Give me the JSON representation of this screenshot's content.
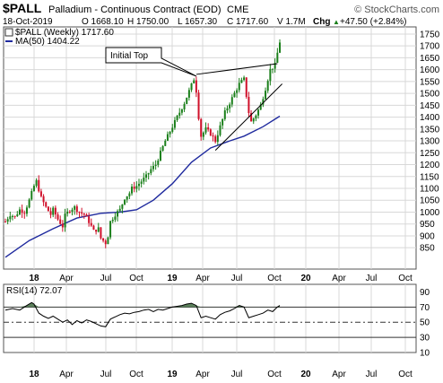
{
  "header": {
    "symbol": "$PALL",
    "description": "Palladium - Continuous Contract (EOD)",
    "exchange": "CME",
    "copyright": "© StockCharts.com",
    "date": "18-Oct-2019",
    "open": "O 1668.10",
    "high": "H 1750.00",
    "low": "L 1657.30",
    "close": "C 1717.60",
    "volume": "V 1.7M",
    "change_label": "Chg",
    "change_value": "+47.50 (+2.84%)",
    "change_arrow": "▲"
  },
  "legend": {
    "price_label": "$PALL (Weekly) 1717.60",
    "ma_label": "MA(50) 1404.22",
    "rsi_label": "RSI(14) 72.07"
  },
  "annotation": {
    "text": "Initial Top"
  },
  "colors": {
    "up": "#1a7f1a",
    "down": "#d0102a",
    "ma": "#1f2a9e",
    "rsi": "#000000",
    "rsi_fill": "#3f6b3f",
    "grid": "#d8d8d8",
    "text": "#000000"
  },
  "chart_data": [
    {
      "type": "candlestick",
      "title": "$PALL (Weekly)",
      "ylim": [
        760,
        1780
      ],
      "y_ticks": [
        850,
        900,
        950,
        1000,
        1050,
        1100,
        1150,
        1200,
        1250,
        1300,
        1350,
        1400,
        1450,
        1500,
        1550,
        1600,
        1650,
        1700,
        1750
      ],
      "x_ticks": [
        "18",
        "Apr",
        "Jul",
        "Oct",
        "19",
        "Apr",
        "Jul",
        "Oct",
        "20",
        "Apr",
        "Jul",
        "Oct"
      ],
      "price_path": [
        [
          0,
          960
        ],
        [
          2,
          990
        ],
        [
          4,
          980
        ],
        [
          6,
          1010
        ],
        [
          8,
          1000
        ],
        [
          10,
          1050
        ],
        [
          12,
          1110
        ],
        [
          13,
          1130
        ],
        [
          15,
          1060
        ],
        [
          17,
          1020
        ],
        [
          19,
          990
        ],
        [
          20,
          1010
        ],
        [
          22,
          970
        ],
        [
          24,
          940
        ],
        [
          25,
          985
        ],
        [
          27,
          1010
        ],
        [
          29,
          1020
        ],
        [
          31,
          1000
        ],
        [
          33,
          990
        ],
        [
          35,
          960
        ],
        [
          37,
          920
        ],
        [
          39,
          930
        ],
        [
          40,
          890
        ],
        [
          42,
          870
        ],
        [
          43,
          900
        ],
        [
          44,
          960
        ],
        [
          46,
          990
        ],
        [
          48,
          1010
        ],
        [
          50,
          1060
        ],
        [
          52,
          1080
        ],
        [
          53,
          1100
        ],
        [
          55,
          1110
        ],
        [
          57,
          1130
        ],
        [
          59,
          1150
        ],
        [
          61,
          1180
        ],
        [
          63,
          1200
        ],
        [
          65,
          1250
        ],
        [
          67,
          1300
        ],
        [
          69,
          1340
        ],
        [
          71,
          1380
        ],
        [
          73,
          1420
        ],
        [
          75,
          1460
        ],
        [
          77,
          1510
        ],
        [
          79,
          1560
        ],
        [
          80,
          1510
        ],
        [
          81,
          1400
        ],
        [
          82,
          1320
        ],
        [
          84,
          1350
        ],
        [
          86,
          1330
        ],
        [
          88,
          1300
        ],
        [
          90,
          1360
        ],
        [
          92,
          1420
        ],
        [
          94,
          1460
        ],
        [
          96,
          1500
        ],
        [
          98,
          1540
        ],
        [
          100,
          1560
        ],
        [
          102,
          1420
        ],
        [
          103,
          1380
        ],
        [
          105,
          1410
        ],
        [
          107,
          1450
        ],
        [
          109,
          1520
        ],
        [
          111,
          1600
        ],
        [
          113,
          1620
        ],
        [
          114,
          1670
        ],
        [
          115,
          1717.6
        ]
      ],
      "moving_average": {
        "name": "MA(50)",
        "last": 1404.22,
        "points": [
          [
            0,
            810
          ],
          [
            10,
            880
          ],
          [
            20,
            930
          ],
          [
            30,
            975
          ],
          [
            40,
            995
          ],
          [
            48,
            1000
          ],
          [
            55,
            1010
          ],
          [
            62,
            1050
          ],
          [
            70,
            1120
          ],
          [
            78,
            1210
          ],
          [
            86,
            1270
          ],
          [
            94,
            1300
          ],
          [
            100,
            1320
          ],
          [
            108,
            1360
          ],
          [
            115,
            1404
          ]
        ]
      },
      "trendlines": [
        {
          "from": [
            80,
            1580
          ],
          "to": [
            114,
            1625
          ]
        },
        {
          "from": [
            88,
            1260
          ],
          "to": [
            116,
            1540
          ]
        }
      ],
      "annotations": [
        {
          "text": "Initial Top",
          "at": [
            80,
            1580
          ]
        }
      ]
    },
    {
      "type": "line",
      "title": "RSI(14)",
      "ylim": [
        10,
        100
      ],
      "y_ticks": [
        10,
        30,
        50,
        70,
        90
      ],
      "reference_lines": [
        30,
        50,
        70
      ],
      "last": 72.07,
      "points": [
        [
          0,
          66
        ],
        [
          3,
          68
        ],
        [
          6,
          66
        ],
        [
          9,
          72
        ],
        [
          11,
          76
        ],
        [
          12,
          74
        ],
        [
          14,
          62
        ],
        [
          16,
          58
        ],
        [
          18,
          55
        ],
        [
          20,
          58
        ],
        [
          22,
          54
        ],
        [
          24,
          50
        ],
        [
          26,
          53
        ],
        [
          28,
          47
        ],
        [
          30,
          52
        ],
        [
          32,
          49
        ],
        [
          34,
          53
        ],
        [
          36,
          51
        ],
        [
          38,
          48
        ],
        [
          40,
          45
        ],
        [
          42,
          44
        ],
        [
          44,
          54
        ],
        [
          46,
          57
        ],
        [
          48,
          60
        ],
        [
          50,
          62
        ],
        [
          52,
          61
        ],
        [
          54,
          63
        ],
        [
          56,
          64
        ],
        [
          58,
          66
        ],
        [
          60,
          67
        ],
        [
          62,
          64
        ],
        [
          64,
          67
        ],
        [
          66,
          66
        ],
        [
          68,
          68
        ],
        [
          70,
          70
        ],
        [
          72,
          71
        ],
        [
          74,
          72
        ],
        [
          76,
          74
        ],
        [
          78,
          75
        ],
        [
          80,
          72
        ],
        [
          82,
          56
        ],
        [
          84,
          58
        ],
        [
          86,
          56
        ],
        [
          88,
          54
        ],
        [
          90,
          60
        ],
        [
          92,
          63
        ],
        [
          94,
          65
        ],
        [
          96,
          68
        ],
        [
          98,
          72
        ],
        [
          100,
          70
        ],
        [
          102,
          56
        ],
        [
          104,
          58
        ],
        [
          106,
          60
        ],
        [
          108,
          62
        ],
        [
          110,
          66
        ],
        [
          112,
          64
        ],
        [
          114,
          70
        ],
        [
          115,
          72.07
        ]
      ]
    }
  ]
}
